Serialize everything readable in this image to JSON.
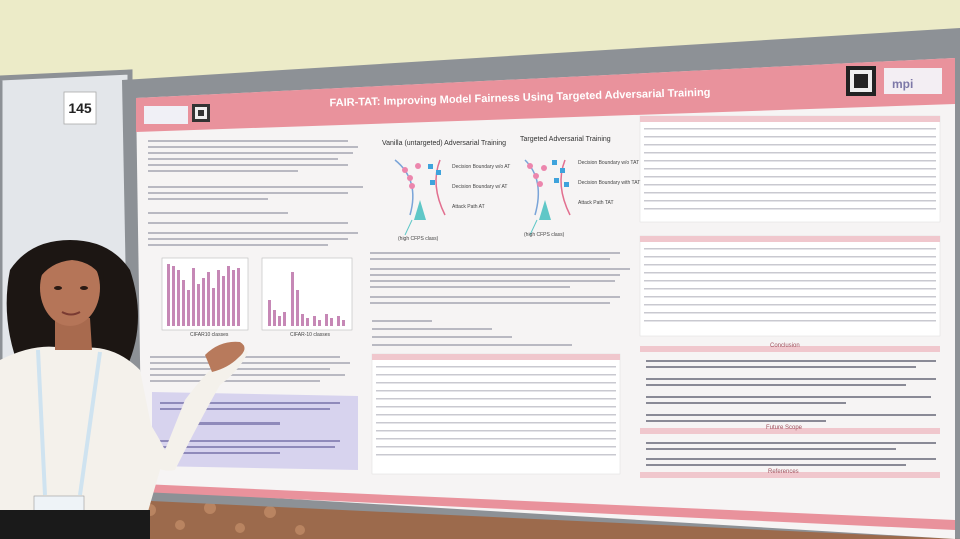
{
  "board_number": "145",
  "poster": {
    "title": "FAIR-TAT: Improving Model Fairness Using Targeted Adversarial Training",
    "diagram_left_title": "Vanilla (untargeted) Adversarial Training",
    "diagram_right_title": "Targeted Adversarial Training",
    "diagram_labels": [
      "Decision Boundary w/o AT",
      "Decision Boundary w/ AT",
      "Attack Path AT",
      "Decision Boundary w/o TAT",
      "Decision Boundary with TAT",
      "Attack Path TAT"
    ],
    "class_label_left": "(high CFPS class)",
    "class_label_right": "(high CFPS class)",
    "chart_label_left": "CIFAR10 classes",
    "chart_label_right": "CIFAR-10 classes",
    "sections": {
      "conclusion": "Conclusion",
      "future_scope": "Future Scope",
      "references": "References"
    }
  },
  "colors": {
    "wall": "#e9e6c4",
    "board_frame": "#8d9196",
    "poster_bg": "#f7f5f5",
    "header_band": "#e98f9a",
    "accent_pink": "#d9848f",
    "bar_color": "#c98ab6",
    "shirt": "#f5f2ec",
    "lanyard": "#cfe3f0",
    "carpet": "#a06b4c"
  }
}
